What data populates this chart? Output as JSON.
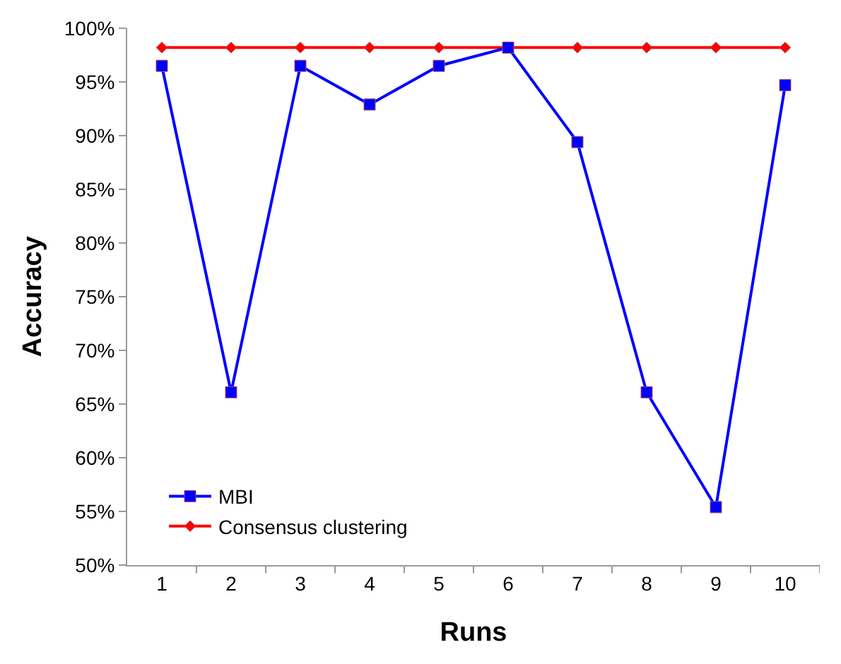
{
  "chart_data": {
    "type": "line",
    "xlabel": "Runs",
    "ylabel": "Accuracy",
    "categories": [
      "1",
      "2",
      "3",
      "4",
      "5",
      "6",
      "7",
      "8",
      "9",
      "10"
    ],
    "series": [
      {
        "name": "MBI",
        "color": "#0000ff",
        "marker": "square",
        "values": [
          96.5,
          66.1,
          96.5,
          92.9,
          96.5,
          98.2,
          89.4,
          66.1,
          55.4,
          94.7
        ]
      },
      {
        "name": "Consensus clustering",
        "color": "#ff0000",
        "marker": "diamond",
        "values": [
          98.2,
          98.2,
          98.2,
          98.2,
          98.2,
          98.2,
          98.2,
          98.2,
          98.2,
          98.2
        ]
      }
    ],
    "ylim": [
      50,
      100
    ],
    "yticks": [
      {
        "value": 50,
        "label": "50%"
      },
      {
        "value": 55,
        "label": "55%"
      },
      {
        "value": 60,
        "label": "60%"
      },
      {
        "value": 65,
        "label": "65%"
      },
      {
        "value": 70,
        "label": "70%"
      },
      {
        "value": 75,
        "label": "75%"
      },
      {
        "value": 80,
        "label": "80%"
      },
      {
        "value": 85,
        "label": "85%"
      },
      {
        "value": 90,
        "label": "90%"
      },
      {
        "value": 95,
        "label": "95%"
      },
      {
        "value": 100,
        "label": "100%"
      }
    ],
    "grid": false,
    "legend": "bottom left",
    "line_style": "solid"
  }
}
